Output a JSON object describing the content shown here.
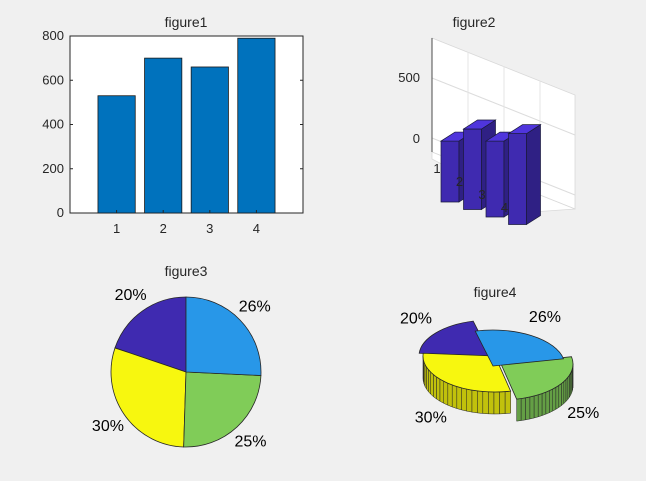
{
  "chart_data": [
    {
      "type": "bar",
      "title": "figure1",
      "categories": [
        "1",
        "2",
        "3",
        "4"
      ],
      "values": [
        530,
        700,
        660,
        790
      ],
      "ylim": [
        0,
        800
      ],
      "yticks": [
        "0",
        "200",
        "400",
        "600",
        "800"
      ],
      "color": "#0072bd",
      "grid": false
    },
    {
      "type": "bar",
      "subtype": "bar3",
      "title": "figure2",
      "categories": [
        "1",
        "2",
        "3",
        "4"
      ],
      "values": [
        530,
        700,
        660,
        790
      ],
      "zticks": [
        "0",
        "500"
      ],
      "color": "#3f2ab0",
      "grid": true
    },
    {
      "type": "pie",
      "title": "figure3",
      "labels": [
        "20%",
        "30%",
        "25%",
        "26%"
      ],
      "values": [
        20,
        30,
        25,
        26
      ],
      "colors": [
        "#3f2ab0",
        "#f7f70f",
        "#80cc58",
        "#2897e8"
      ]
    },
    {
      "type": "pie",
      "subtype": "pie3",
      "title": "figure4",
      "labels": [
        "20%",
        "30%",
        "25%",
        "26%"
      ],
      "values": [
        20,
        30,
        25,
        26
      ],
      "colors": [
        "#3f2ab0",
        "#f7f70f",
        "#80cc58",
        "#2897e8"
      ]
    }
  ]
}
